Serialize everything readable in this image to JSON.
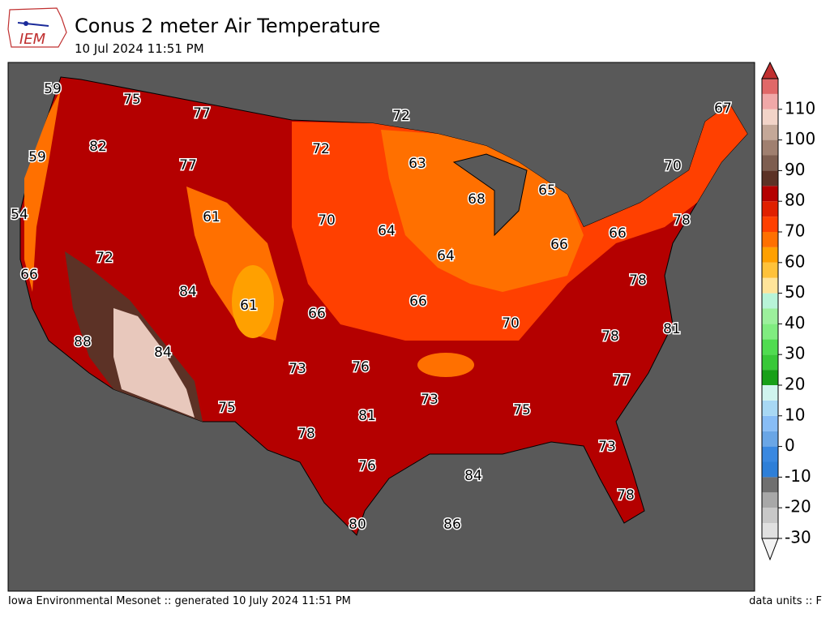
{
  "header": {
    "logo": "IEM",
    "title": "Conus 2 meter Air Temperature",
    "subtitle": "10 Jul 2024 11:51 PM"
  },
  "footer": {
    "left": "Iowa Environmental Mesonet :: generated 10 July 2024 11:51 PM",
    "right": "data units :: F"
  },
  "map_labels": [
    59,
    75,
    77,
    72,
    67,
    82,
    72,
    63,
    59,
    77,
    70,
    68,
    65,
    54,
    61,
    70,
    64,
    78,
    66,
    66,
    72,
    64,
    66,
    84,
    78,
    61,
    66,
    66,
    70,
    81,
    78,
    88,
    84,
    73,
    76,
    77,
    81,
    73,
    75,
    75,
    78,
    73,
    76,
    84,
    78,
    80,
    86
  ],
  "colorbar": {
    "lim": [
      -30,
      120
    ],
    "ticks": [
      -30,
      -20,
      -10,
      0,
      10,
      20,
      30,
      40,
      50,
      60,
      70,
      80,
      90,
      100,
      110
    ],
    "colors": [
      "#e0e0e0",
      "#c8c8c8",
      "#a8a8a8",
      "#707070",
      "#2e7fd8",
      "#3a88e0",
      "#6aa6e6",
      "#88bdf6",
      "#a8d8f4",
      "#d0f4ee",
      "#18a018",
      "#38c838",
      "#50dc50",
      "#80ec80",
      "#9cf09c",
      "#b8f4d8",
      "#ffe49a",
      "#ffc23a",
      "#ffa000",
      "#ff7000",
      "#ff4000",
      "#e02000",
      "#b40000",
      "#5c3226",
      "#7e5e50",
      "#a08070",
      "#c4a898",
      "#f2d4c8",
      "#f0a8a8",
      "#e06868"
    ],
    "over": "#c03030",
    "under": "#f4f4f4"
  }
}
